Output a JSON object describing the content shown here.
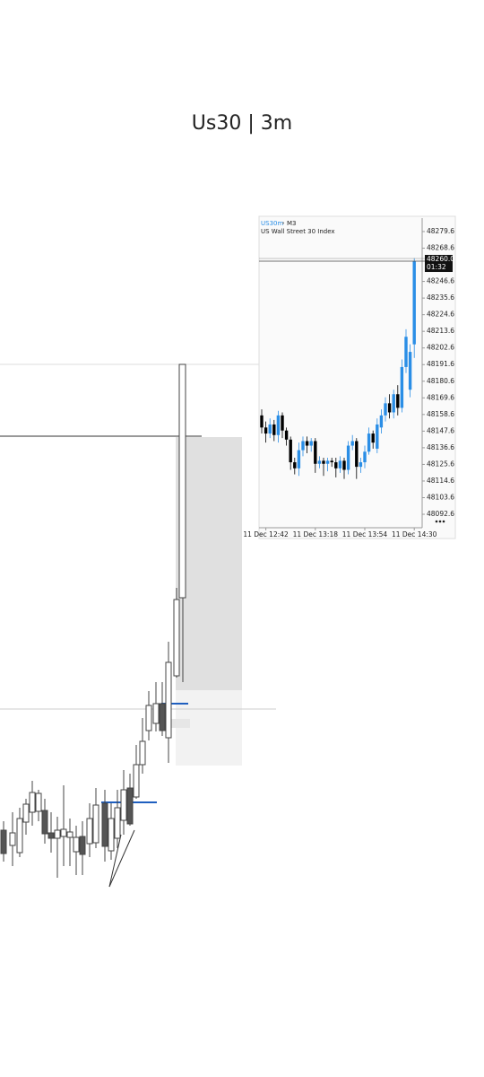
{
  "title": "Us30 | 3m",
  "chart_data": {
    "type": "candlestick",
    "symbol": "US30m",
    "timeframe": "M3",
    "subtitle": "US Wall Street 30 Index",
    "up_color": "#2a8ee6",
    "down_color": "#000000",
    "categories": [
      null,
      "11 Dec 12:42",
      null,
      null,
      null,
      null,
      null,
      null,
      null,
      null,
      null,
      null,
      null,
      "11 Dec 13:18",
      null,
      null,
      null,
      null,
      null,
      null,
      null,
      null,
      null,
      null,
      null,
      "11 Dec 13:54",
      null,
      null,
      null,
      null,
      null,
      null,
      null,
      null,
      null,
      null,
      null,
      "11 Dec 14:30"
    ],
    "open": [
      48158,
      48150,
      48146,
      48152,
      48145,
      48158,
      48148,
      48142,
      48127,
      48123,
      48135,
      48141,
      48138,
      48141,
      48126,
      48128,
      48126,
      48128,
      48127,
      48123,
      48128,
      48122,
      48138,
      48141,
      48124,
      48127,
      48134,
      48146,
      48136,
      48150,
      48158,
      48166,
      48160,
      48172,
      48163,
      48190,
      48175,
      48205
    ],
    "high": [
      48162,
      48154,
      48156,
      48155,
      48161,
      48160,
      48150,
      48144,
      48130,
      48140,
      48144,
      48144,
      48143,
      48143,
      48131,
      48130,
      48130,
      48130,
      48130,
      48131,
      48130,
      48141,
      48145,
      48143,
      48130,
      48138,
      48150,
      48148,
      48156,
      48162,
      48170,
      48172,
      48175,
      48178,
      48195,
      48215,
      48205,
      48262
    ],
    "low": [
      48146,
      48140,
      48143,
      48141,
      48140,
      48143,
      48138,
      48122,
      48119,
      48118,
      48131,
      48133,
      48134,
      48120,
      48123,
      48118,
      48121,
      48124,
      48117,
      48120,
      48116,
      48119,
      48135,
      48116,
      48120,
      48123,
      48132,
      48136,
      48133,
      48146,
      48154,
      48156,
      48156,
      48158,
      48160,
      48186,
      48170,
      48196
    ],
    "close": [
      48150,
      48146,
      48152,
      48145,
      48158,
      48148,
      48142,
      48127,
      48123,
      48135,
      48141,
      48138,
      48141,
      48126,
      48128,
      48126,
      48128,
      48127,
      48123,
      48128,
      48122,
      48138,
      48141,
      48124,
      48127,
      48134,
      48146,
      48140,
      48152,
      48158,
      48166,
      48160,
      48172,
      48163,
      48190,
      48210,
      48200,
      48260
    ],
    "ylim": [
      48084.3,
      48288.5
    ],
    "yticks": [
      48279.6,
      48268.6,
      48246.6,
      48235.6,
      48224.6,
      48213.6,
      48202.6,
      48191.6,
      48180.6,
      48169.6,
      48158.6,
      48147.6,
      48136.6,
      48125.6,
      48114.6,
      48103.6,
      48092.6
    ],
    "price": {
      "value": 48260,
      "label": "48260.0"
    },
    "countdown": "01:32"
  }
}
